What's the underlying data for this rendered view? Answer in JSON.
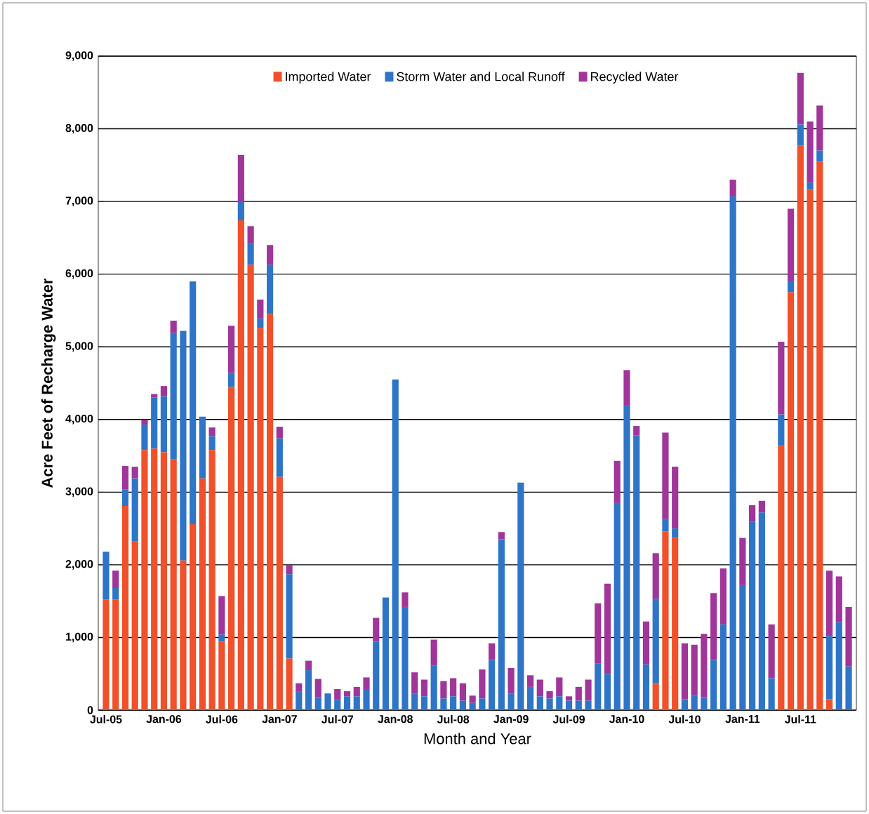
{
  "chart_data": {
    "type": "bar",
    "stacked": true,
    "xlabel": "Month and Year",
    "ylabel": "Acre Feet of Recharge Water",
    "categories": [
      "Jul-05",
      null,
      null,
      null,
      null,
      null,
      "Jan-06",
      null,
      null,
      null,
      null,
      null,
      "Jul-06",
      null,
      null,
      null,
      null,
      null,
      "Jan-07",
      null,
      null,
      null,
      null,
      null,
      "Jul-07",
      null,
      null,
      null,
      null,
      null,
      "Jan-08",
      null,
      null,
      null,
      null,
      null,
      "Jul-08",
      null,
      null,
      null,
      null,
      null,
      "Jan-09",
      null,
      null,
      null,
      null,
      null,
      "Jul-09",
      null,
      null,
      null,
      null,
      null,
      "Jan-10",
      null,
      null,
      null,
      null,
      null,
      "Jul-10",
      null,
      null,
      null,
      null,
      null,
      "Jan-11",
      null,
      null,
      null,
      null,
      null,
      "Jul-11",
      null,
      null,
      null,
      null,
      null
    ],
    "series": [
      {
        "name": "Imported Water",
        "color": "#f0502a",
        "values": [
          1520,
          1520,
          2810,
          2320,
          3580,
          3600,
          3550,
          3450,
          2060,
          2560,
          3190,
          3580,
          940,
          4450,
          6740,
          6130,
          5260,
          5450,
          3210,
          710,
          0,
          0,
          0,
          0,
          0,
          0,
          0,
          0,
          0,
          0,
          0,
          0,
          0,
          0,
          0,
          0,
          0,
          0,
          0,
          0,
          0,
          0,
          0,
          0,
          0,
          0,
          0,
          0,
          0,
          0,
          0,
          0,
          0,
          0,
          0,
          0,
          0,
          370,
          2460,
          2370,
          0,
          0,
          0,
          0,
          0,
          0,
          0,
          0,
          0,
          0,
          3650,
          5750,
          7770,
          7160,
          7550,
          150,
          0,
          0
        ]
      },
      {
        "name": "Storm Water and Local Runoff",
        "color": "#2e75c8",
        "values": [
          660,
          160,
          230,
          870,
          350,
          700,
          770,
          1740,
          3160,
          3340,
          850,
          190,
          100,
          190,
          260,
          290,
          130,
          680,
          530,
          1160,
          260,
          550,
          180,
          230,
          140,
          190,
          190,
          290,
          940,
          1550,
          4550,
          1420,
          230,
          190,
          610,
          160,
          190,
          130,
          100,
          160,
          690,
          2350,
          230,
          3130,
          320,
          190,
          160,
          190,
          130,
          130,
          130,
          640,
          500,
          2850,
          4200,
          3780,
          630,
          1160,
          170,
          130,
          150,
          210,
          180,
          690,
          1180,
          7070,
          1720,
          2590,
          2720,
          440,
          420,
          160,
          290,
          100,
          150,
          870,
          1210,
          600
        ]
      },
      {
        "name": "Recycled Water",
        "color": "#a0359a",
        "values": [
          0,
          240,
          320,
          160,
          70,
          50,
          140,
          170,
          0,
          0,
          0,
          120,
          530,
          650,
          640,
          240,
          260,
          270,
          160,
          130,
          110,
          130,
          250,
          0,
          150,
          70,
          130,
          160,
          330,
          0,
          0,
          200,
          290,
          230,
          360,
          240,
          250,
          240,
          100,
          400,
          230,
          100,
          350,
          0,
          160,
          230,
          100,
          260,
          60,
          190,
          290,
          830,
          1240,
          580,
          480,
          130,
          590,
          630,
          1190,
          850,
          770,
          690,
          870,
          920,
          770,
          230,
          650,
          230,
          160,
          740,
          1000,
          990,
          710,
          840,
          620,
          900,
          630,
          820
        ]
      }
    ],
    "ylim": [
      0,
      9000
    ],
    "yticks": [
      0,
      {
        "value": 1000,
        "label": "1,000"
      },
      {
        "value": 2000,
        "label": "2,000"
      },
      {
        "value": 3000,
        "label": "3,000"
      },
      {
        "value": 4000,
        "label": "4,000"
      },
      {
        "value": 5000,
        "label": "5,000"
      },
      {
        "value": 6000,
        "label": "6,000"
      },
      {
        "value": 7000,
        "label": "7,000"
      },
      {
        "value": 8000,
        "label": "8,000"
      },
      {
        "value": 9000,
        "label": "9,000"
      }
    ],
    "grid": "y",
    "legend": "top"
  }
}
